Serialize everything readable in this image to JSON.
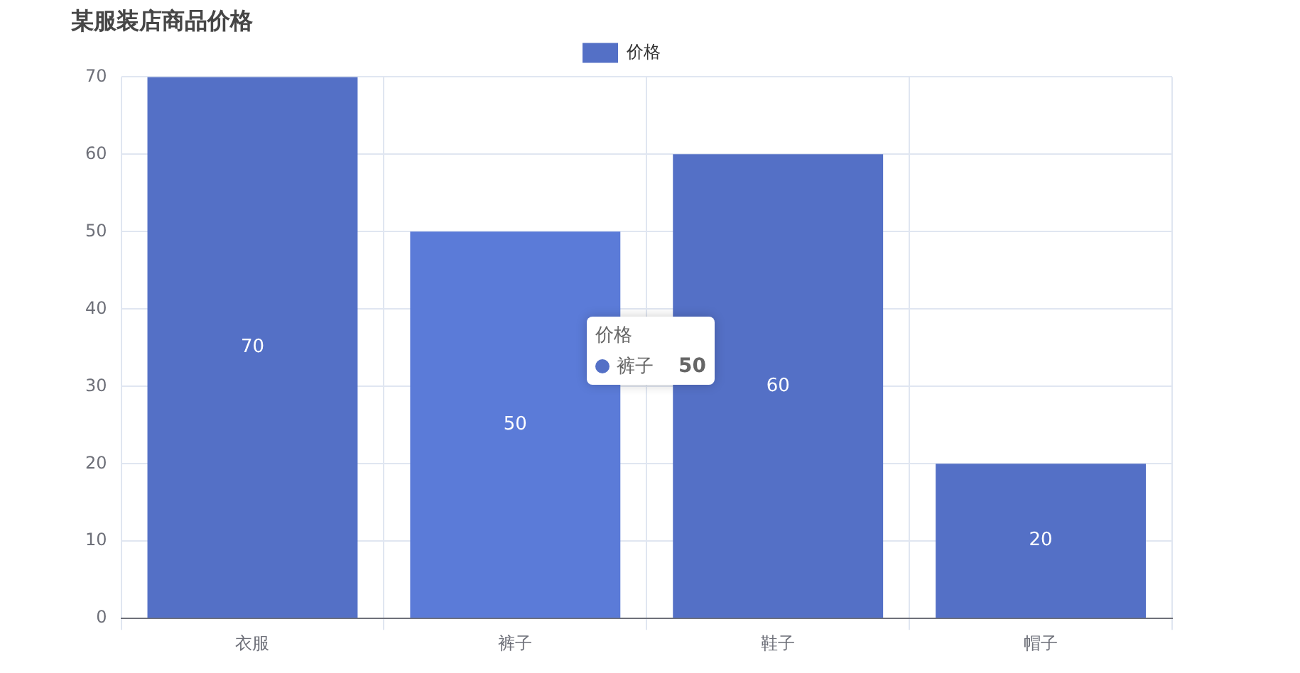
{
  "chart_data": {
    "type": "bar",
    "title": "某服装店商品价格",
    "categories": [
      "衣服",
      "裤子",
      "鞋子",
      "帽子"
    ],
    "series": [
      {
        "name": "价格",
        "color": "#5470c6",
        "colors": [
          "#5470c6",
          "#5b7bd8",
          "#5470c6",
          "#5470c6"
        ],
        "values": [
          70,
          50,
          60,
          20
        ]
      }
    ],
    "ylim": [
      0,
      70
    ],
    "yticks": [
      0,
      10,
      20,
      30,
      40,
      50,
      60,
      70
    ],
    "grid": true,
    "legend": "top",
    "data_labels": true,
    "annotations": [
      "价格",
      "裤子",
      "50"
    ]
  }
}
